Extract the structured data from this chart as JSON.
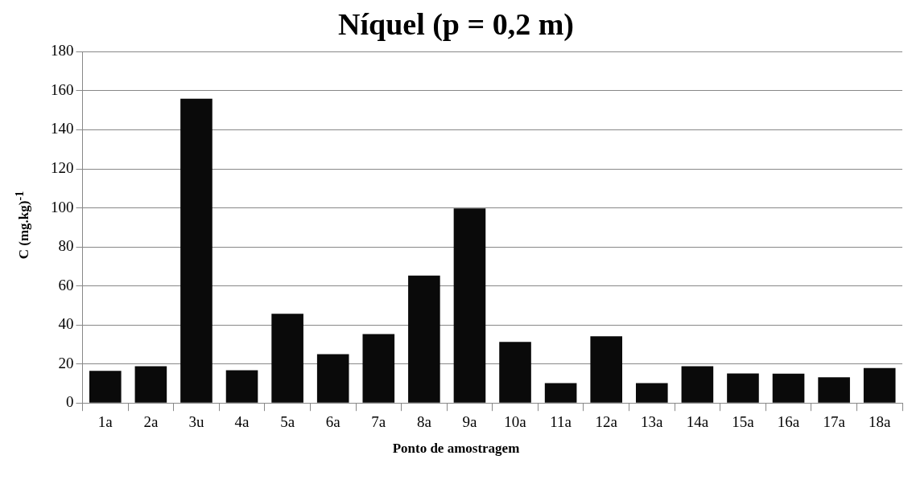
{
  "chart_data": {
    "type": "bar",
    "title": "Níquel (p = 0,2 m)",
    "xlabel": "Ponto de amostragem",
    "ylabel": "C (mg.kg)$^{-1}$",
    "categories": [
      "1a",
      "2a",
      "3u",
      "4a",
      "5a",
      "6a",
      "7a",
      "8a",
      "9a",
      "10a",
      "11a",
      "12a",
      "13a",
      "14a",
      "15a",
      "16a",
      "17a",
      "18a"
    ],
    "values": [
      16.5,
      18.8,
      156,
      16.8,
      45.7,
      25,
      35.3,
      65.3,
      99.7,
      31.3,
      10.2,
      34.2,
      10.2,
      18.8,
      15.1,
      15,
      13.2,
      17.9
    ],
    "color": "#0a0a0a",
    "ylim": [
      0,
      180
    ],
    "yticks": [
      0,
      20,
      40,
      60,
      80,
      100,
      120,
      140,
      160,
      180
    ],
    "grid": "y",
    "legend": false
  }
}
